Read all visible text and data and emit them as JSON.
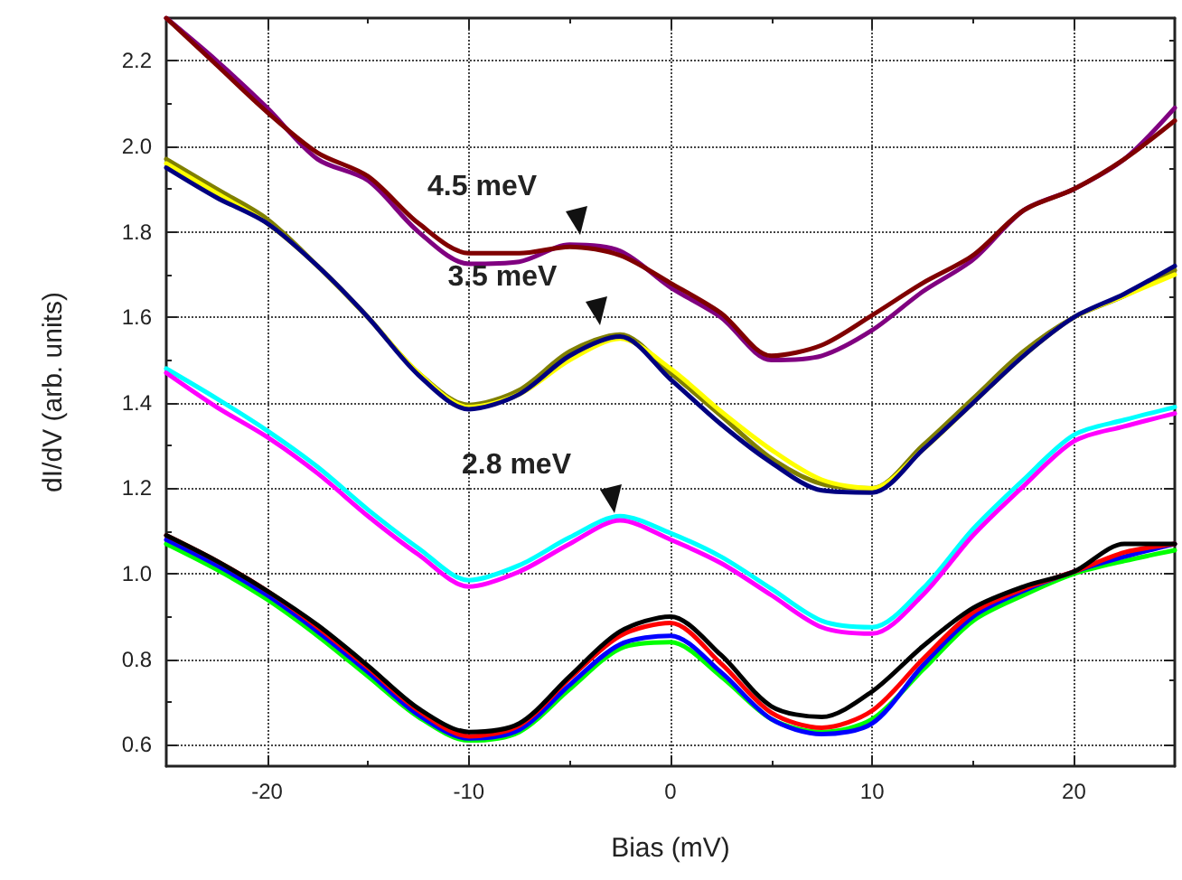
{
  "chart_data": {
    "type": "line",
    "xlabel": "Bias (mV)",
    "ylabel": "dI/dV (arb. units)",
    "xlim": [
      -25,
      25
    ],
    "xticks": [
      -20,
      -10,
      0,
      10,
      20
    ],
    "ylim": [
      0.55,
      2.3
    ],
    "yticks": [
      {
        "value": 0.6,
        "label": "0.6"
      },
      {
        "value": 0.8,
        "label": "0.8"
      },
      {
        "value": 1.0,
        "label": "1.0"
      },
      {
        "value": 1.2,
        "label": "1.2"
      },
      {
        "value": 1.4,
        "label": "1.4"
      },
      {
        "value": 1.6,
        "label": "1.6"
      },
      {
        "value": 1.8,
        "label": "1.8"
      },
      {
        "value": 2.0,
        "label": "2.0"
      },
      {
        "value": 2.2,
        "label": "2.2"
      }
    ],
    "grid": true,
    "marker": "none",
    "line_style": "solid",
    "x": [
      -25,
      -22.5,
      -20,
      -17.5,
      -15,
      -12.5,
      -10,
      -7.5,
      -5,
      -2.5,
      0,
      2.5,
      5,
      7.5,
      10,
      12.5,
      15,
      17.5,
      20,
      22.5,
      25
    ],
    "series": [
      {
        "color": "#800080",
        "values": [
          2.3,
          2.2,
          2.09,
          1.97,
          1.92,
          1.8,
          1.725,
          1.73,
          1.77,
          1.755,
          1.67,
          1.6,
          1.5,
          1.51,
          1.57,
          1.66,
          1.735,
          1.85,
          1.9,
          1.97,
          2.09
        ]
      },
      {
        "color": "#800000",
        "values": [
          2.3,
          2.19,
          2.08,
          1.985,
          1.93,
          1.82,
          1.75,
          1.75,
          1.765,
          1.745,
          1.68,
          1.61,
          1.51,
          1.535,
          1.605,
          1.68,
          1.745,
          1.85,
          1.9,
          1.97,
          2.06
        ]
      },
      {
        "color": "#808000",
        "values": [
          1.97,
          1.9,
          1.83,
          1.72,
          1.6,
          1.47,
          1.395,
          1.43,
          1.52,
          1.56,
          1.47,
          1.37,
          1.27,
          1.21,
          1.2,
          1.3,
          1.41,
          1.52,
          1.6,
          1.65,
          1.71
        ]
      },
      {
        "color": "#ffff00",
        "values": [
          1.96,
          1.89,
          1.82,
          1.72,
          1.6,
          1.47,
          1.39,
          1.42,
          1.5,
          1.55,
          1.48,
          1.38,
          1.29,
          1.22,
          1.2,
          1.29,
          1.4,
          1.51,
          1.6,
          1.65,
          1.7
        ]
      },
      {
        "color": "#000080",
        "values": [
          1.95,
          1.88,
          1.82,
          1.72,
          1.6,
          1.465,
          1.385,
          1.42,
          1.51,
          1.555,
          1.455,
          1.35,
          1.26,
          1.195,
          1.19,
          1.29,
          1.4,
          1.51,
          1.6,
          1.655,
          1.72
        ]
      },
      {
        "color": "#00ffff",
        "values": [
          1.48,
          1.41,
          1.335,
          1.25,
          1.15,
          1.06,
          0.985,
          1.02,
          1.085,
          1.135,
          1.095,
          1.04,
          0.965,
          0.89,
          0.875,
          0.965,
          1.105,
          1.22,
          1.325,
          1.36,
          1.39
        ]
      },
      {
        "color": "#ff00ff",
        "values": [
          1.47,
          1.39,
          1.32,
          1.235,
          1.135,
          1.045,
          0.97,
          1.005,
          1.07,
          1.125,
          1.08,
          1.025,
          0.95,
          0.875,
          0.86,
          0.95,
          1.09,
          1.205,
          1.31,
          1.345,
          1.375
        ]
      },
      {
        "color": "#00ff00",
        "values": [
          1.07,
          1.01,
          0.94,
          0.855,
          0.76,
          0.665,
          0.61,
          0.63,
          0.73,
          0.825,
          0.84,
          0.76,
          0.66,
          0.63,
          0.66,
          0.775,
          0.89,
          0.95,
          1.0,
          1.03,
          1.055
        ]
      },
      {
        "color": "#0000ff",
        "values": [
          1.08,
          1.02,
          0.95,
          0.865,
          0.77,
          0.67,
          0.615,
          0.635,
          0.74,
          0.835,
          0.855,
          0.77,
          0.66,
          0.625,
          0.65,
          0.785,
          0.9,
          0.96,
          1.005,
          1.04,
          1.07
        ]
      },
      {
        "color": "#ff0000",
        "values": [
          1.09,
          1.03,
          0.96,
          0.875,
          0.78,
          0.68,
          0.62,
          0.645,
          0.755,
          0.855,
          0.885,
          0.79,
          0.675,
          0.64,
          0.68,
          0.8,
          0.91,
          0.965,
          1.005,
          1.05,
          1.07
        ]
      },
      {
        "color": "#000000",
        "values": [
          1.09,
          1.03,
          0.96,
          0.88,
          0.785,
          0.685,
          0.63,
          0.65,
          0.76,
          0.865,
          0.9,
          0.81,
          0.69,
          0.665,
          0.725,
          0.83,
          0.92,
          0.97,
          1.005,
          1.07,
          1.07
        ]
      }
    ],
    "annotations": [
      {
        "text": "4.5 meV",
        "x": -4.5,
        "y": 1.77
      },
      {
        "text": "3.5 meV",
        "x": -3.5,
        "y": 1.56
      },
      {
        "text": "2.8 meV",
        "x": -2.8,
        "y": 1.12
      }
    ]
  }
}
